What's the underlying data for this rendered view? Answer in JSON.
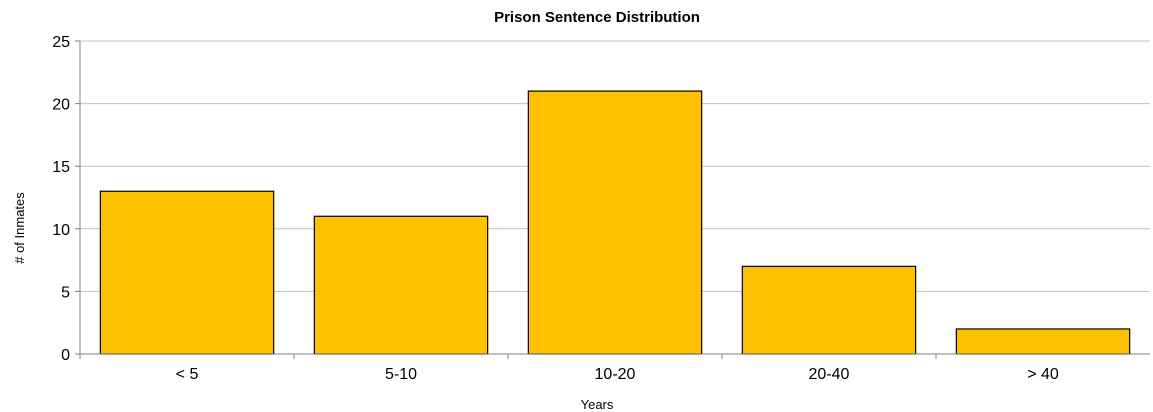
{
  "chart_data": {
    "type": "bar",
    "title": "Prison Sentence Distribution",
    "xlabel": "Years",
    "ylabel": "# of Inmates",
    "categories": [
      "< 5",
      "5-10",
      "10-20",
      "20-40",
      "> 40"
    ],
    "values": [
      13,
      11,
      21,
      7,
      2
    ],
    "ylim": [
      0,
      25
    ],
    "yticks": [
      "0",
      "5",
      "10",
      "15",
      "20",
      "25"
    ],
    "grid": true,
    "legend": "none",
    "bar_color": "#FFC000"
  }
}
